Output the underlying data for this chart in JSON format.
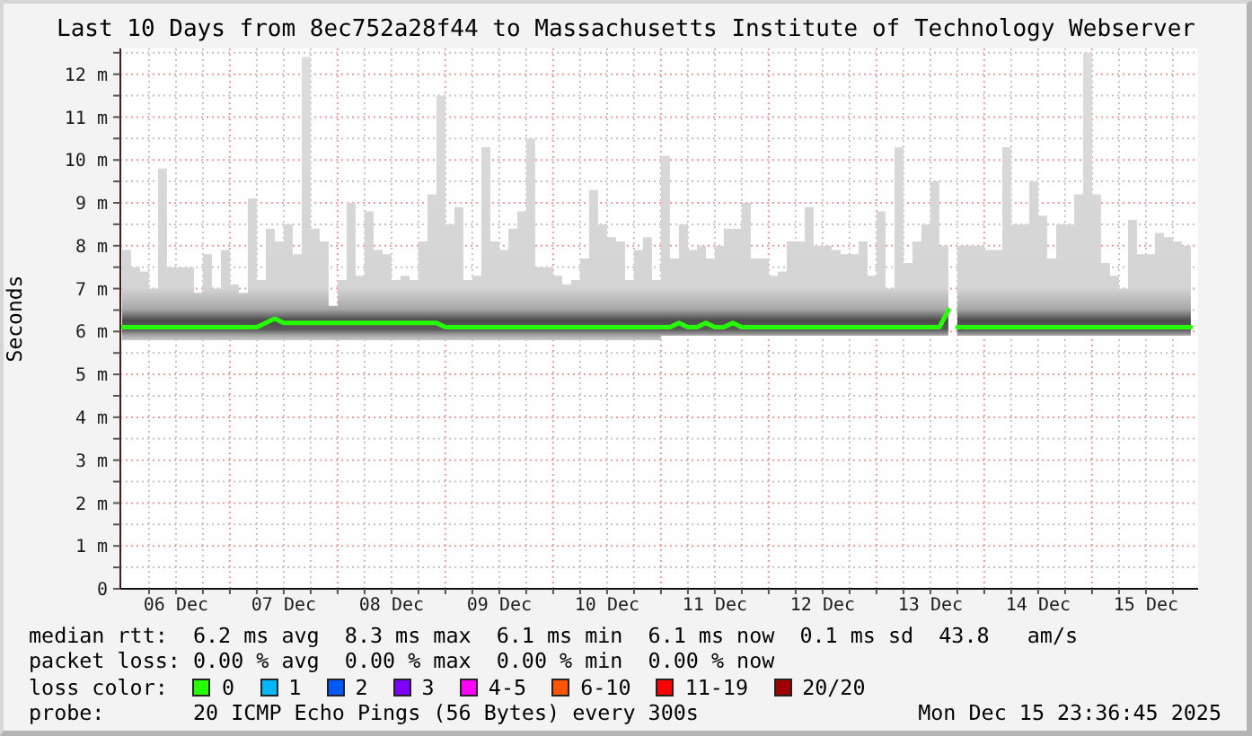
{
  "chart_data": {
    "type": "line",
    "title": "Last 10 Days from 8ec752a28f44 to Massachusetts Institute of Technology Webserver",
    "ylabel": "Seconds",
    "legend_title": "loss color:",
    "legend": "bottom",
    "grid": true,
    "xlim": [
      "2025-12-05T23:37",
      "2025-12-15T23:37"
    ],
    "xticks": [
      {
        "value": "2025-12-06T06:00",
        "label": null
      },
      {
        "value": "2025-12-06T12:00",
        "label": "06 Dec"
      },
      {
        "value": "2025-12-06T18:00",
        "label": null
      },
      {
        "value": "2025-12-07T00:00",
        "label": null
      },
      {
        "value": "2025-12-07T06:00",
        "label": null
      },
      {
        "value": "2025-12-07T12:00",
        "label": "07 Dec"
      },
      {
        "value": "2025-12-07T18:00",
        "label": null
      },
      {
        "value": "2025-12-08T00:00",
        "label": null
      },
      {
        "value": "2025-12-08T06:00",
        "label": null
      },
      {
        "value": "2025-12-08T12:00",
        "label": "08 Dec"
      },
      {
        "value": "2025-12-08T18:00",
        "label": null
      },
      {
        "value": "2025-12-09T00:00",
        "label": null
      },
      {
        "value": "2025-12-09T06:00",
        "label": null
      },
      {
        "value": "2025-12-09T12:00",
        "label": "09 Dec"
      },
      {
        "value": "2025-12-09T18:00",
        "label": null
      },
      {
        "value": "2025-12-10T00:00",
        "label": null
      },
      {
        "value": "2025-12-10T06:00",
        "label": null
      },
      {
        "value": "2025-12-10T12:00",
        "label": "10 Dec"
      },
      {
        "value": "2025-12-10T18:00",
        "label": null
      },
      {
        "value": "2025-12-11T00:00",
        "label": null
      },
      {
        "value": "2025-12-11T06:00",
        "label": null
      },
      {
        "value": "2025-12-11T12:00",
        "label": "11 Dec"
      },
      {
        "value": "2025-12-11T18:00",
        "label": null
      },
      {
        "value": "2025-12-12T00:00",
        "label": null
      },
      {
        "value": "2025-12-12T06:00",
        "label": null
      },
      {
        "value": "2025-12-12T12:00",
        "label": "12 Dec"
      },
      {
        "value": "2025-12-12T18:00",
        "label": null
      },
      {
        "value": "2025-12-13T00:00",
        "label": null
      },
      {
        "value": "2025-12-13T06:00",
        "label": null
      },
      {
        "value": "2025-12-13T12:00",
        "label": "13 Dec"
      },
      {
        "value": "2025-12-13T18:00",
        "label": null
      },
      {
        "value": "2025-12-14T00:00",
        "label": null
      },
      {
        "value": "2025-12-14T06:00",
        "label": null
      },
      {
        "value": "2025-12-14T12:00",
        "label": "14 Dec"
      },
      {
        "value": "2025-12-14T18:00",
        "label": null
      },
      {
        "value": "2025-12-15T00:00",
        "label": null
      },
      {
        "value": "2025-12-15T06:00",
        "label": null
      },
      {
        "value": "2025-12-15T12:00",
        "label": "15 Dec"
      },
      {
        "value": "2025-12-15T18:00",
        "label": null
      }
    ],
    "ylim": [
      0,
      12.6
    ],
    "yticks": [
      0,
      {
        "value": 0.5,
        "label": null
      },
      {
        "value": 1,
        "label": "1 m"
      },
      {
        "value": 1.5,
        "label": null
      },
      {
        "value": 2,
        "label": "2 m"
      },
      {
        "value": 2.5,
        "label": null
      },
      {
        "value": 3,
        "label": "3 m"
      },
      {
        "value": 3.5,
        "label": null
      },
      {
        "value": 4,
        "label": "4 m"
      },
      {
        "value": 4.5,
        "label": null
      },
      {
        "value": 5,
        "label": "5 m"
      },
      {
        "value": 5.5,
        "label": null
      },
      {
        "value": 6,
        "label": "6 m"
      },
      {
        "value": 6.5,
        "label": null
      },
      {
        "value": 7,
        "label": "7 m"
      },
      {
        "value": 7.5,
        "label": null
      },
      {
        "value": 8,
        "label": "8 m"
      },
      {
        "value": 8.5,
        "label": null
      },
      {
        "value": 9,
        "label": "9 m"
      },
      {
        "value": 9.5,
        "label": null
      },
      {
        "value": 10,
        "label": "10 m"
      },
      {
        "value": 10.5,
        "label": null
      },
      {
        "value": 11,
        "label": "11 m"
      },
      {
        "value": 11.5,
        "label": null
      },
      {
        "value": 12,
        "label": "12 m"
      },
      {
        "value": 12.5,
        "label": null
      }
    ],
    "x": [
      "2025-12-06T00:00",
      "2025-12-06T02:00",
      "2025-12-06T04:00",
      "2025-12-06T06:00",
      "2025-12-06T08:00",
      "2025-12-06T10:00",
      "2025-12-06T12:00",
      "2025-12-06T14:00",
      "2025-12-06T16:00",
      "2025-12-06T18:00",
      "2025-12-06T20:00",
      "2025-12-06T22:00",
      "2025-12-07T00:00",
      "2025-12-07T02:00",
      "2025-12-07T04:00",
      "2025-12-07T06:00",
      "2025-12-07T08:00",
      "2025-12-07T10:00",
      "2025-12-07T12:00",
      "2025-12-07T14:00",
      "2025-12-07T16:00",
      "2025-12-07T18:00",
      "2025-12-07T20:00",
      "2025-12-07T22:00",
      "2025-12-08T00:00",
      "2025-12-08T02:00",
      "2025-12-08T04:00",
      "2025-12-08T06:00",
      "2025-12-08T08:00",
      "2025-12-08T10:00",
      "2025-12-08T12:00",
      "2025-12-08T14:00",
      "2025-12-08T16:00",
      "2025-12-08T18:00",
      "2025-12-08T20:00",
      "2025-12-08T22:00",
      "2025-12-09T00:00",
      "2025-12-09T02:00",
      "2025-12-09T04:00",
      "2025-12-09T06:00",
      "2025-12-09T08:00",
      "2025-12-09T10:00",
      "2025-12-09T12:00",
      "2025-12-09T14:00",
      "2025-12-09T16:00",
      "2025-12-09T18:00",
      "2025-12-09T20:00",
      "2025-12-09T22:00",
      "2025-12-10T00:00",
      "2025-12-10T02:00",
      "2025-12-10T04:00",
      "2025-12-10T06:00",
      "2025-12-10T08:00",
      "2025-12-10T10:00",
      "2025-12-10T12:00",
      "2025-12-10T14:00",
      "2025-12-10T16:00",
      "2025-12-10T18:00",
      "2025-12-10T20:00",
      "2025-12-10T22:00",
      "2025-12-11T00:00",
      "2025-12-11T02:00",
      "2025-12-11T04:00",
      "2025-12-11T06:00",
      "2025-12-11T08:00",
      "2025-12-11T10:00",
      "2025-12-11T12:00",
      "2025-12-11T14:00",
      "2025-12-11T16:00",
      "2025-12-11T18:00",
      "2025-12-11T20:00",
      "2025-12-11T22:00",
      "2025-12-12T00:00",
      "2025-12-12T02:00",
      "2025-12-12T04:00",
      "2025-12-12T06:00",
      "2025-12-12T08:00",
      "2025-12-12T10:00",
      "2025-12-12T12:00",
      "2025-12-12T14:00",
      "2025-12-12T16:00",
      "2025-12-12T18:00",
      "2025-12-12T20:00",
      "2025-12-12T22:00",
      "2025-12-13T00:00",
      "2025-12-13T02:00",
      "2025-12-13T04:00",
      "2025-12-13T06:00",
      "2025-12-13T08:00",
      "2025-12-13T10:00",
      "2025-12-13T12:00",
      "2025-12-13T14:00",
      "2025-12-13T16:00",
      "2025-12-13T17:00",
      "2025-12-13T18:00",
      "2025-12-13T20:00",
      "2025-12-13T22:00",
      "2025-12-14T00:00",
      "2025-12-14T02:00",
      "2025-12-14T04:00",
      "2025-12-14T06:00",
      "2025-12-14T08:00",
      "2025-12-14T10:00",
      "2025-12-14T12:00",
      "2025-12-14T14:00",
      "2025-12-14T16:00",
      "2025-12-14T18:00",
      "2025-12-14T20:00",
      "2025-12-14T22:00",
      "2025-12-15T00:00",
      "2025-12-15T02:00",
      "2025-12-15T04:00",
      "2025-12-15T06:00",
      "2025-12-15T08:00",
      "2025-12-15T10:00",
      "2025-12-15T12:00",
      "2025-12-15T14:00",
      "2025-12-15T16:00",
      "2025-12-15T18:00",
      "2025-12-15T20:00",
      "2025-12-15T22:00"
    ],
    "series": [
      {
        "name": "0",
        "color": "#26ff00",
        "values": [
          6.1,
          6.1,
          6.1,
          6.1,
          6.1,
          6.1,
          6.1,
          6.1,
          6.1,
          6.1,
          6.1,
          6.1,
          6.1,
          6.1,
          6.1,
          6.1,
          6.2,
          6.3,
          6.2,
          6.2,
          6.2,
          6.2,
          6.2,
          6.2,
          6.2,
          6.2,
          6.2,
          6.2,
          6.2,
          6.2,
          6.2,
          6.2,
          6.2,
          6.2,
          6.2,
          6.2,
          6.1,
          6.1,
          6.1,
          6.1,
          6.1,
          6.1,
          6.1,
          6.1,
          6.1,
          6.1,
          6.1,
          6.1,
          6.1,
          6.1,
          6.1,
          6.1,
          6.1,
          6.1,
          6.1,
          6.1,
          6.1,
          6.1,
          6.1,
          6.1,
          6.1,
          6.1,
          6.2,
          6.1,
          6.1,
          6.2,
          6.1,
          6.1,
          6.2,
          6.1,
          6.1,
          6.1,
          6.1,
          6.1,
          6.1,
          6.1,
          6.1,
          6.1,
          6.1,
          6.1,
          6.1,
          6.1,
          6.1,
          6.1,
          6.1,
          6.1,
          6.1,
          6.1,
          6.1,
          6.1,
          6.1,
          6.1,
          6.5,
          null,
          6.1,
          6.1,
          6.1,
          6.1,
          6.1,
          6.1,
          6.1,
          6.1,
          6.1,
          6.1,
          6.1,
          6.1,
          6.1,
          6.1,
          6.1,
          6.1,
          6.1,
          6.1,
          6.1,
          6.1,
          6.1,
          6.1,
          6.1,
          6.1,
          6.1,
          6.1,
          6.1
        ],
        "lower": [
          5.8,
          5.8,
          5.8,
          5.8,
          5.8,
          5.8,
          5.8,
          5.8,
          5.8,
          5.8,
          5.8,
          5.8,
          5.8,
          5.8,
          5.8,
          5.8,
          5.8,
          5.8,
          5.8,
          5.8,
          5.8,
          5.8,
          5.8,
          5.8,
          5.8,
          5.8,
          5.8,
          5.8,
          5.8,
          5.8,
          5.8,
          5.8,
          5.8,
          5.8,
          5.8,
          5.8,
          5.8,
          5.8,
          5.8,
          5.8,
          5.8,
          5.8,
          5.8,
          5.8,
          5.8,
          5.8,
          5.8,
          5.8,
          5.8,
          5.8,
          5.8,
          5.8,
          5.8,
          5.8,
          5.8,
          5.8,
          5.8,
          5.8,
          5.8,
          5.8,
          5.9,
          5.9,
          5.9,
          5.9,
          5.9,
          5.9,
          5.9,
          5.9,
          5.9,
          5.9,
          5.9,
          5.9,
          5.9,
          5.9,
          5.9,
          5.9,
          5.9,
          5.9,
          5.9,
          5.9,
          5.9,
          5.9,
          5.9,
          5.9,
          5.9,
          5.9,
          5.9,
          5.9,
          5.9,
          5.9,
          5.9,
          5.9,
          5.9,
          null,
          5.9,
          5.9,
          5.9,
          5.9,
          5.9,
          5.9,
          5.9,
          5.9,
          5.9,
          5.9,
          5.9,
          5.9,
          5.9,
          5.9,
          5.9,
          5.9,
          5.9,
          5.9,
          5.9,
          5.9,
          5.9,
          5.9,
          5.9,
          5.9,
          5.9,
          5.9,
          5.9
        ],
        "upper": [
          7.9,
          7.5,
          7.4,
          7.0,
          9.8,
          7.5,
          7.5,
          7.5,
          6.9,
          7.8,
          7.0,
          7.9,
          7.1,
          6.9,
          9.1,
          7.2,
          8.4,
          8.1,
          8.5,
          7.8,
          12.4,
          8.4,
          8.1,
          6.6,
          7.2,
          9.0,
          7.3,
          8.8,
          7.9,
          7.8,
          7.2,
          7.3,
          7.2,
          8.1,
          9.2,
          11.5,
          8.5,
          8.9,
          7.2,
          7.3,
          10.3,
          8.1,
          7.9,
          8.4,
          8.8,
          10.5,
          7.5,
          7.5,
          7.3,
          7.1,
          7.2,
          7.7,
          9.3,
          8.5,
          8.2,
          8.1,
          7.2,
          7.9,
          8.2,
          7.2,
          10.1,
          7.7,
          8.5,
          7.9,
          8.0,
          7.7,
          8.0,
          8.4,
          8.4,
          9.0,
          7.7,
          7.7,
          7.3,
          7.4,
          8.1,
          8.1,
          8.9,
          8.0,
          8.0,
          7.9,
          7.8,
          7.8,
          8.1,
          7.3,
          8.8,
          7.0,
          10.3,
          7.6,
          8.1,
          8.5,
          9.5,
          8.0,
          7.9,
          null,
          8.0,
          8.0,
          8.0,
          7.9,
          7.9,
          10.3,
          8.5,
          8.5,
          9.5,
          8.7,
          7.7,
          8.5,
          8.5,
          9.2,
          12.5,
          9.2,
          7.6,
          7.3,
          7.0,
          8.6,
          7.8,
          7.8,
          8.3,
          8.2,
          8.1,
          8.0,
          8.4
        ]
      },
      {
        "name": "1",
        "color": "#00b8ff",
        "values": [
          null,
          null,
          null,
          null,
          null,
          null,
          null,
          null,
          null,
          null,
          null,
          null,
          null,
          null,
          null,
          null,
          null,
          null,
          null,
          null,
          null,
          null,
          null,
          null,
          null,
          null,
          null,
          null,
          null,
          null,
          null,
          null,
          null,
          null,
          null,
          null,
          null,
          null,
          null,
          null,
          null,
          null,
          null,
          null,
          null,
          null,
          null,
          null,
          null,
          null,
          null,
          null,
          null,
          null,
          null,
          null,
          null,
          null,
          null,
          null,
          null,
          null,
          null,
          null,
          null,
          null,
          null,
          null,
          null,
          null,
          null,
          null,
          null,
          null,
          null,
          null,
          null,
          null,
          null,
          null,
          null,
          null,
          null,
          null,
          null,
          null,
          null,
          null,
          null,
          null,
          null,
          null,
          null,
          null,
          null,
          null,
          null,
          null,
          null,
          null,
          null,
          null,
          null,
          null,
          null,
          null,
          null,
          null,
          null,
          null,
          null,
          null,
          null,
          null,
          null,
          null,
          null,
          null,
          null,
          null,
          null
        ]
      },
      {
        "name": "2",
        "color": "#0059ff",
        "values": [
          null,
          null,
          null,
          null,
          null,
          null,
          null,
          null,
          null,
          null,
          null,
          null,
          null,
          null,
          null,
          null,
          null,
          null,
          null,
          null,
          null,
          null,
          null,
          null,
          null,
          null,
          null,
          null,
          null,
          null,
          null,
          null,
          null,
          null,
          null,
          null,
          null,
          null,
          null,
          null,
          null,
          null,
          null,
          null,
          null,
          null,
          null,
          null,
          null,
          null,
          null,
          null,
          null,
          null,
          null,
          null,
          null,
          null,
          null,
          null,
          null,
          null,
          null,
          null,
          null,
          null,
          null,
          null,
          null,
          null,
          null,
          null,
          null,
          null,
          null,
          null,
          null,
          null,
          null,
          null,
          null,
          null,
          null,
          null,
          null,
          null,
          null,
          null,
          null,
          null,
          null,
          null,
          null,
          null,
          null,
          null,
          null,
          null,
          null,
          null,
          null,
          null,
          null,
          null,
          null,
          null,
          null,
          null,
          null,
          null,
          null,
          null,
          null,
          null,
          null,
          null,
          null,
          null,
          null,
          null,
          null
        ]
      },
      {
        "name": "3",
        "color": "#7e00ff",
        "values": [
          null,
          null,
          null,
          null,
          null,
          null,
          null,
          null,
          null,
          null,
          null,
          null,
          null,
          null,
          null,
          null,
          null,
          null,
          null,
          null,
          null,
          null,
          null,
          null,
          null,
          null,
          null,
          null,
          null,
          null,
          null,
          null,
          null,
          null,
          null,
          null,
          null,
          null,
          null,
          null,
          null,
          null,
          null,
          null,
          null,
          null,
          null,
          null,
          null,
          null,
          null,
          null,
          null,
          null,
          null,
          null,
          null,
          null,
          null,
          null,
          null,
          null,
          null,
          null,
          null,
          null,
          null,
          null,
          null,
          null,
          null,
          null,
          null,
          null,
          null,
          null,
          null,
          null,
          null,
          null,
          null,
          null,
          null,
          null,
          null,
          null,
          null,
          null,
          null,
          null,
          null,
          null,
          null,
          null,
          null,
          null,
          null,
          null,
          null,
          null,
          null,
          null,
          null,
          null,
          null,
          null,
          null,
          null,
          null,
          null,
          null,
          null,
          null,
          null,
          null,
          null,
          null,
          null,
          null,
          null,
          null
        ]
      },
      {
        "name": "4-5",
        "color": "#ff00ff",
        "values": [
          null,
          null,
          null,
          null,
          null,
          null,
          null,
          null,
          null,
          null,
          null,
          null,
          null,
          null,
          null,
          null,
          null,
          null,
          null,
          null,
          null,
          null,
          null,
          null,
          null,
          null,
          null,
          null,
          null,
          null,
          null,
          null,
          null,
          null,
          null,
          null,
          null,
          null,
          null,
          null,
          null,
          null,
          null,
          null,
          null,
          null,
          null,
          null,
          null,
          null,
          null,
          null,
          null,
          null,
          null,
          null,
          null,
          null,
          null,
          null,
          null,
          null,
          null,
          null,
          null,
          null,
          null,
          null,
          null,
          null,
          null,
          null,
          null,
          null,
          null,
          null,
          null,
          null,
          null,
          null,
          null,
          null,
          null,
          null,
          null,
          null,
          null,
          null,
          null,
          null,
          null,
          null,
          null,
          null,
          null,
          null,
          null,
          null,
          null,
          null,
          null,
          null,
          null,
          null,
          null,
          null,
          null,
          null,
          null,
          null,
          null,
          null,
          null,
          null,
          null,
          null,
          null,
          null,
          null,
          null,
          null
        ]
      },
      {
        "name": "6-10",
        "color": "#ff5500",
        "values": [
          null,
          null,
          null,
          null,
          null,
          null,
          null,
          null,
          null,
          null,
          null,
          null,
          null,
          null,
          null,
          null,
          null,
          null,
          null,
          null,
          null,
          null,
          null,
          null,
          null,
          null,
          null,
          null,
          null,
          null,
          null,
          null,
          null,
          null,
          null,
          null,
          null,
          null,
          null,
          null,
          null,
          null,
          null,
          null,
          null,
          null,
          null,
          null,
          null,
          null,
          null,
          null,
          null,
          null,
          null,
          null,
          null,
          null,
          null,
          null,
          null,
          null,
          null,
          null,
          null,
          null,
          null,
          null,
          null,
          null,
          null,
          null,
          null,
          null,
          null,
          null,
          null,
          null,
          null,
          null,
          null,
          null,
          null,
          null,
          null,
          null,
          null,
          null,
          null,
          null,
          null,
          null,
          null,
          null,
          null,
          null,
          null,
          null,
          null,
          null,
          null,
          null,
          null,
          null,
          null,
          null,
          null,
          null,
          null,
          null,
          null,
          null,
          null,
          null,
          null,
          null,
          null,
          null,
          null,
          null,
          null
        ]
      },
      {
        "name": "11-19",
        "color": "#ff0000",
        "values": [
          null,
          null,
          null,
          null,
          null,
          null,
          null,
          null,
          null,
          null,
          null,
          null,
          null,
          null,
          null,
          null,
          null,
          null,
          null,
          null,
          null,
          null,
          null,
          null,
          null,
          null,
          null,
          null,
          null,
          null,
          null,
          null,
          null,
          null,
          null,
          null,
          null,
          null,
          null,
          null,
          null,
          null,
          null,
          null,
          null,
          null,
          null,
          null,
          null,
          null,
          null,
          null,
          null,
          null,
          null,
          null,
          null,
          null,
          null,
          null,
          null,
          null,
          null,
          null,
          null,
          null,
          null,
          null,
          null,
          null,
          null,
          null,
          null,
          null,
          null,
          null,
          null,
          null,
          null,
          null,
          null,
          null,
          null,
          null,
          null,
          null,
          null,
          null,
          null,
          null,
          null,
          null,
          null,
          null,
          null,
          null,
          null,
          null,
          null,
          null,
          null,
          null,
          null,
          null,
          null,
          null,
          null,
          null,
          null,
          null,
          null,
          null,
          null,
          null,
          null,
          null,
          null,
          null,
          null,
          null,
          null
        ]
      },
      {
        "name": "20/20",
        "color": "#a10000",
        "values": [
          null,
          null,
          null,
          null,
          null,
          null,
          null,
          null,
          null,
          null,
          null,
          null,
          null,
          null,
          null,
          null,
          null,
          null,
          null,
          null,
          null,
          null,
          null,
          null,
          null,
          null,
          null,
          null,
          null,
          null,
          null,
          null,
          null,
          null,
          null,
          null,
          null,
          null,
          null,
          null,
          null,
          null,
          null,
          null,
          null,
          null,
          null,
          null,
          null,
          null,
          null,
          null,
          null,
          null,
          null,
          null,
          null,
          null,
          null,
          null,
          null,
          null,
          null,
          null,
          null,
          null,
          null,
          null,
          null,
          null,
          null,
          null,
          null,
          null,
          null,
          null,
          null,
          null,
          null,
          null,
          null,
          null,
          null,
          null,
          null,
          null,
          null,
          null,
          null,
          null,
          null,
          null,
          null,
          null,
          null,
          null,
          null,
          null,
          null,
          null,
          null,
          null,
          null,
          null,
          null,
          null,
          null,
          null,
          null,
          null,
          null,
          null,
          null,
          null,
          null,
          null,
          null,
          null,
          null,
          null,
          null
        ]
      }
    ],
    "annotations": [
      "median rtt:  6.2 ms avg  8.3 ms max  6.1 ms min  6.1 ms now  0.1 ms sd  43.8   am/s",
      "packet loss: 0.00 % avg  0.00 % max  0.00 % min  0.00 % now",
      "probe:       20 ICMP Echo Pings (56 Bytes) every 300s",
      "Mon Dec 15 23:36:45 2025"
    ]
  }
}
